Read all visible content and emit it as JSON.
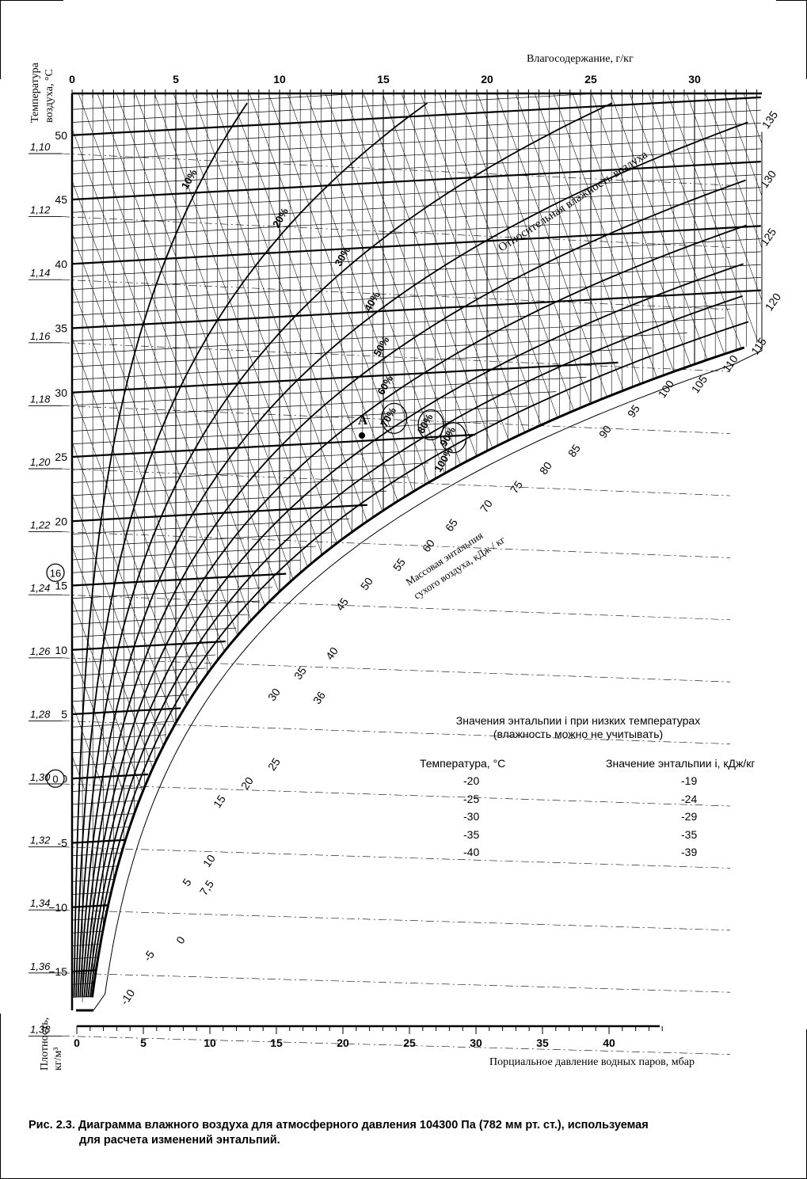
{
  "top_axis": {
    "title": "Влагосодержание, г/кг",
    "ticks": [
      "0",
      "5",
      "10",
      "15",
      "20",
      "25",
      "30"
    ]
  },
  "left_axis": {
    "title_line1": "Температура",
    "title_line2": "воздуха, °C",
    "ticks": [
      "50",
      "45",
      "40",
      "35",
      "30",
      "25",
      "20",
      "15",
      "10",
      "5",
      "0",
      "-5",
      "−10",
      "−15"
    ],
    "circled_labels": [
      "16",
      "0"
    ]
  },
  "density_axis": {
    "title_line1": "Плотность,",
    "title_line2": "кг/м³",
    "ticks": [
      "1,10",
      "1,12",
      "1,14",
      "1,16",
      "1,18",
      "1,20",
      "1,22",
      "1,24",
      "1,26",
      "1,28",
      "1,30",
      "1,32",
      "1,34",
      "1,36",
      "1,38"
    ]
  },
  "bottom_axis": {
    "title": "Порциальное давление водных паров, мбар",
    "ticks": [
      "0",
      "5",
      "10",
      "15",
      "20",
      "25",
      "30",
      "35",
      "40"
    ]
  },
  "humidity": {
    "title": "Относительная влажность воздуха",
    "labels": [
      "10%",
      "20%",
      "30%",
      "40%",
      "50%",
      "60%",
      "70%",
      "80%",
      "90%",
      "100%"
    ]
  },
  "enthalpy": {
    "title_line1": "Массовая энтальпия",
    "title_line2": "сухого воздуха, кДж / кг",
    "labels": [
      "-10",
      "-5",
      "0",
      "5",
      "7,5",
      "10",
      "15",
      "20",
      "25",
      "30",
      "35",
      "36",
      "40",
      "45",
      "50",
      "55",
      "60",
      "65",
      "70",
      "75",
      "80",
      "85",
      "90",
      "95",
      "100",
      "105",
      "110",
      "115",
      "120",
      "125",
      "130",
      "135"
    ]
  },
  "point": {
    "label": "А"
  },
  "low_temp_table": {
    "heading_line1": "Значения энтальпии i при низких температурах",
    "heading_line2": "(влажность можно не учитывать)",
    "col1_header": "Температура, °С",
    "col2_header": "Значение энтальпии i, кДж/кг",
    "rows": [
      {
        "t": "-20",
        "i": "-19"
      },
      {
        "t": "-25",
        "i": "-24"
      },
      {
        "t": "-30",
        "i": "-29"
      },
      {
        "t": "-35",
        "i": "-35"
      },
      {
        "t": "-40",
        "i": "-39"
      }
    ]
  },
  "caption": {
    "line1": "Рис. 2.3. Диаграмма влажного воздуха для атмосферного давления 104300 Па (782 мм рт. ст.), используемая",
    "line2": "для расчета изменений энтальпий."
  }
}
